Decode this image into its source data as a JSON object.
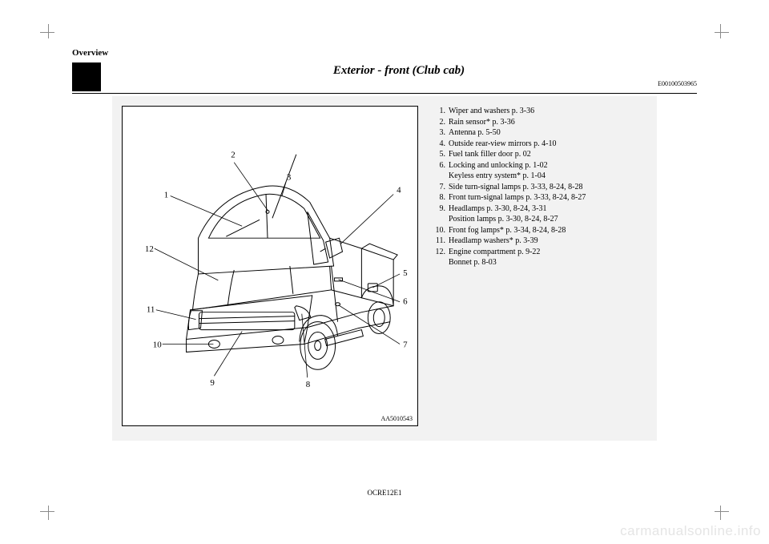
{
  "section": "Overview",
  "title": "Exterior - front (Club cab)",
  "doc_code": "E00100503965",
  "figure_code": "AA5010543",
  "footer_code": "OCRE12E1",
  "watermark": "carmanualsonline.info",
  "callouts": {
    "n1": "1",
    "n2": "2",
    "n3": "3",
    "n4": "4",
    "n5": "5",
    "n6": "6",
    "n7": "7",
    "n8": "8",
    "n9": "9",
    "n10": "10",
    "n11": "11",
    "n12": "12"
  },
  "legend": [
    {
      "n": "1.",
      "t": "Wiper and washers p. 3-36"
    },
    {
      "n": "2.",
      "t": "Rain sensor* p. 3-36"
    },
    {
      "n": "3.",
      "t": "Antenna p. 5-50"
    },
    {
      "n": "4.",
      "t": "Outside rear-view mirrors p. 4-10"
    },
    {
      "n": "5.",
      "t": "Fuel tank filler door p. 02"
    },
    {
      "n": "6.",
      "t": "Locking and unlocking p. 1-02\nKeyless entry system* p. 1-04"
    },
    {
      "n": "7.",
      "t": "Side turn-signal lamps p. 3-33, 8-24, 8-28"
    },
    {
      "n": "8.",
      "t": "Front turn-signal lamps p. 3-33, 8-24, 8-27"
    },
    {
      "n": "9.",
      "t": "Headlamps p. 3-30, 8-24, 3-31\nPosition lamps p. 3-30, 8-24, 8-27"
    },
    {
      "n": "10.",
      "t": "Front fog lamps* p. 3-34, 8-24, 8-28"
    },
    {
      "n": "11.",
      "t": "Headlamp washers* p. 3-39"
    },
    {
      "n": "12.",
      "t": "Engine compartment p. 9-22\nBonnet p. 8-03"
    }
  ]
}
